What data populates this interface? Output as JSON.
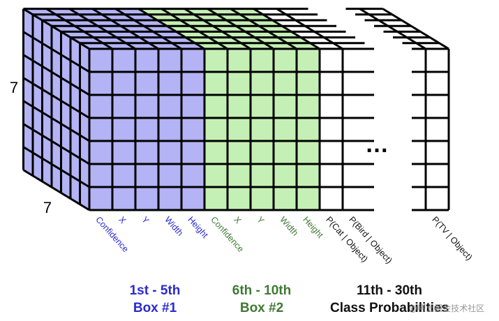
{
  "dims": {
    "rows_label": "7",
    "cols_label": "7"
  },
  "channels": [
    {
      "label": "Confidence",
      "group": "box1"
    },
    {
      "label": "X",
      "group": "box1"
    },
    {
      "label": "Y",
      "group": "box1"
    },
    {
      "label": "Width",
      "group": "box1"
    },
    {
      "label": "Height",
      "group": "box1"
    },
    {
      "label": "Confidence",
      "group": "box2"
    },
    {
      "label": "X",
      "group": "box2"
    },
    {
      "label": "Y",
      "group": "box2"
    },
    {
      "label": "Width",
      "group": "box2"
    },
    {
      "label": "Height",
      "group": "box2"
    },
    {
      "label": "P(Cat | Object)",
      "group": "cls"
    },
    {
      "label": "P(Bird | Object)",
      "group": "cls"
    },
    {
      "label": "P(TV | Object)",
      "group": "cls"
    }
  ],
  "ellipsis": "…",
  "groups": [
    {
      "key": "box1",
      "line1": "1st - 5th",
      "line2": "Box #1"
    },
    {
      "key": "box2",
      "line1": "6th - 10th",
      "line2": "Box #2"
    },
    {
      "key": "cls",
      "line1": "11th - 30th",
      "line2": "Class Probabilities"
    }
  ],
  "colors": {
    "box1_fill": "#b3b3f5",
    "box1_text": "#2a2ad0",
    "box2_fill": "#c5f0b5",
    "box2_text": "#3f7a34",
    "cls_fill": "#ffffff",
    "cls_text": "#111111",
    "line": "#000000"
  },
  "watermark": "@稀土掘金技术社区"
}
